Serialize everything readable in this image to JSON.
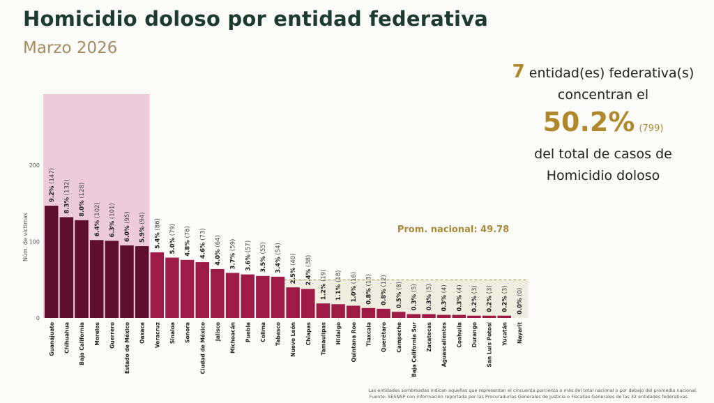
{
  "title": "Homicidio doloso por entidad federativa",
  "subtitle": "Marzo 2026",
  "summary": {
    "count": "7",
    "line1": "entidad(es) federativa(s)",
    "line2": "concentran el",
    "percent": "50.2%",
    "total": "(799)",
    "line3": "del total de casos de",
    "line4": "Homicidio doloso"
  },
  "footnote1": "Las entidades sombreadas indican aquellas que representan el cincuenta porciento o más del total nacional o por debajo del promedio nacional.",
  "footnote2": "Fuente: SESNSP con información reportada por las Procuradurías Generales de Justicia o Fiscalías Generales de las 32 entidades federativas.",
  "colors": {
    "top": "#5e0f2e",
    "rest": "#9d1b46",
    "top_shade": "#edcbda",
    "below_shade": "#efeee0",
    "avg": "#a98a3a"
  },
  "chart_data": {
    "type": "bar",
    "ylabel": "Núm. de víctimas",
    "ylim": [
      0,
      290
    ],
    "yticks": [
      0,
      100,
      200
    ],
    "average": {
      "label": "Prom. nacional: 49.78",
      "value": 49.78
    },
    "categories": [
      "Guanajuato",
      "Chihuahua",
      "Baja California",
      "Morelos",
      "Guerrero",
      "Estado de México",
      "Oaxaca",
      "Veracruz",
      "Sinaloa",
      "Sonora",
      "Ciudad de México",
      "Jalisco",
      "Michoacán",
      "Puebla",
      "Colima",
      "Tabasco",
      "Nuevo León",
      "Chiapas",
      "Tamaulipas",
      "Hidalgo",
      "Quintana Roo",
      "Tlaxcala",
      "Querétaro",
      "Campeche",
      "Baja California Sur",
      "Zacatecas",
      "Aguascalientes",
      "Coahuila",
      "Durango",
      "San Luis Potosí",
      "Yucatán",
      "Nayarit"
    ],
    "values": [
      147,
      132,
      128,
      102,
      101,
      95,
      94,
      86,
      79,
      76,
      73,
      64,
      59,
      57,
      55,
      54,
      40,
      38,
      19,
      18,
      16,
      13,
      12,
      8,
      5,
      5,
      4,
      4,
      3,
      3,
      3,
      0
    ],
    "percents": [
      "9.2%",
      "8.3%",
      "8.0%",
      "6.4%",
      "6.3%",
      "6.0%",
      "5.9%",
      "5.4%",
      "5.0%",
      "4.8%",
      "4.6%",
      "4.0%",
      "3.7%",
      "3.6%",
      "3.5%",
      "3.4%",
      "2.5%",
      "2.4%",
      "1.2%",
      "1.1%",
      "1.0%",
      "0.8%",
      "0.8%",
      "0.5%",
      "0.3%",
      "0.3%",
      "0.3%",
      "0.3%",
      "0.2%",
      "0.2%",
      "0.2%",
      "0.0%"
    ],
    "top_group_count": 7
  }
}
